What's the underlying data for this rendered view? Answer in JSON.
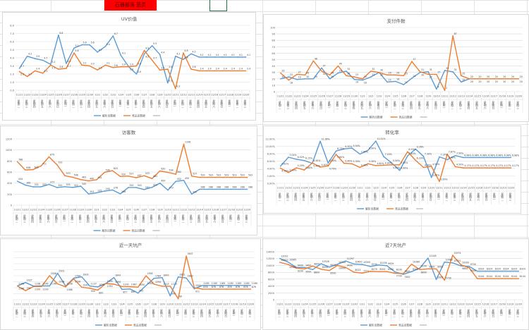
{
  "banner": {
    "text": "石器部落 恶灵",
    "color": "#ff0000"
  },
  "legend": {
    "series_a": "解析出数据",
    "series_b": "竞品出数据"
  },
  "colors": {
    "series_a": "#5b9bd5",
    "series_b": "#ed7d31",
    "grid": "#d9d9d9"
  },
  "chart_data": [
    {
      "type": "line",
      "title": "UV价值",
      "ylim": [
        0,
        8
      ],
      "ystep": 1,
      "yformat": "0.0",
      "grid": true,
      "legend": "bottom",
      "categories": [
        "11/21",
        "11/22",
        "11/23",
        "11/24",
        "11/25",
        "11/26",
        "11/27",
        "11/28",
        "11/29",
        "11/30",
        "12/1",
        "12/2",
        "12/3",
        "12/4",
        "12/5",
        "12/6",
        "12/7",
        "12/8",
        "12/9",
        "12/10",
        "12/11",
        "12/12",
        "12/13",
        "12/14",
        "12/15",
        "12/16",
        "12/17",
        "12/18",
        "12/19",
        "12/20"
      ],
      "weekdays": [
        "星期二",
        "星期三",
        "星期四",
        "星期五",
        "星期六",
        "星期日",
        "星期一",
        "星期二",
        "星期三",
        "星期四",
        "星期五",
        "星期六",
        "星期日",
        "星期一",
        "星期二",
        "星期三",
        "星期四",
        "星期五",
        "星期六",
        "星期日",
        "星期一",
        "星期二",
        "星期三",
        "星期四",
        "星期五",
        "星期六",
        "星期日",
        "星期一",
        "星期二",
        "星期三"
      ],
      "series": [
        {
          "name": "解析出数据",
          "values": [
            2.7,
            4.2,
            3.9,
            3.7,
            3.2,
            6.8,
            3.3,
            5.2,
            5.6,
            5.6,
            4.7,
            5.4,
            6.7,
            4.3,
            2.9,
            2.0,
            4.5,
            5.5,
            4.4,
            0.9,
            4.2,
            3.8,
            4.5,
            4.1,
            4.1,
            4.1,
            4.1,
            4.1,
            4.1,
            4.1
          ]
        },
        {
          "name": "竞品出数据",
          "values": [
            2.3,
            1.7,
            2.4,
            2.1,
            3.1,
            2.6,
            2.7,
            4.6,
            3.1,
            3.0,
            2.5,
            3.1,
            2.8,
            2.9,
            2.9,
            3.0,
            4.9,
            3.7,
            2.5,
            2.6,
            0.2,
            4.6,
            2.6,
            2.4,
            2.4,
            2.4,
            2.4,
            2.4,
            2.4,
            2.4
          ]
        }
      ]
    },
    {
      "type": "line",
      "title": "支付件数",
      "ylim": [
        0,
        100
      ],
      "ystep": 10,
      "yformat": "0",
      "grid": true,
      "legend": "bottom",
      "categories": [
        "11/21",
        "11/22",
        "11/23",
        "11/24",
        "11/25",
        "11/26",
        "11/27",
        "11/28",
        "11/29",
        "11/30",
        "12/1",
        "12/2",
        "12/3",
        "12/4",
        "12/5",
        "12/6",
        "12/7",
        "12/8",
        "12/9",
        "12/10",
        "12/11",
        "12/12",
        "12/13",
        "12/14",
        "12/15",
        "12/16",
        "12/17",
        "12/18",
        "12/19",
        "12/20"
      ],
      "weekdays": [
        "星期二",
        "星期三",
        "星期四",
        "星期五",
        "星期六",
        "星期日",
        "星期一",
        "星期二",
        "星期三",
        "星期四",
        "星期五",
        "星期六",
        "星期日",
        "星期一",
        "星期二",
        "星期三",
        "星期四",
        "星期五",
        "星期六",
        "星期日",
        "星期一",
        "星期二",
        "星期三",
        "星期四",
        "星期五",
        "星期六",
        "星期日",
        "星期一",
        "星期二",
        "星期三"
      ],
      "series": [
        {
          "name": "解析出数据",
          "values": [
            20,
            23,
            19,
            20,
            20,
            37,
            20,
            29,
            32,
            19,
            18,
            23,
            30,
            15,
            16,
            11,
            21,
            30,
            31,
            4,
            33,
            31,
            15,
            20,
            20,
            20,
            20,
            20,
            20,
            20
          ]
        },
        {
          "name": "竞品出数据",
          "values": [
            29,
            18,
            27,
            26,
            48,
            32,
            26,
            40,
            25,
            23,
            20,
            32,
            30,
            26,
            26,
            25,
            47,
            31,
            27,
            27,
            2,
            87,
            25,
            20,
            20,
            20,
            20,
            20,
            20,
            20
          ]
        }
      ]
    },
    {
      "type": "line",
      "title": "访客数",
      "ylim": [
        0,
        1200
      ],
      "ystep": 200,
      "yformat": "0",
      "grid": true,
      "legend": "bottom",
      "categories": [
        "11/21",
        "11/22",
        "11/23",
        "11/24",
        "11/25",
        "11/26",
        "11/27",
        "11/28",
        "11/29",
        "11/30",
        "12/1",
        "12/2",
        "12/3",
        "12/4",
        "12/5",
        "12/6",
        "12/7",
        "12/8",
        "12/9",
        "12/10",
        "12/11",
        "12/12",
        "12/13",
        "12/14",
        "12/15",
        "12/16",
        "12/17",
        "12/18",
        "12/19",
        "12/20"
      ],
      "weekdays": [
        "星期二",
        "星期三",
        "星期四",
        "星期五",
        "星期六",
        "星期日",
        "星期一",
        "星期二",
        "星期三",
        "星期四",
        "星期五",
        "星期六",
        "星期日",
        "星期一",
        "星期二",
        "星期三",
        "星期四",
        "星期五",
        "星期六",
        "星期日",
        "星期一",
        "星期二",
        "星期三",
        "星期四",
        "星期五",
        "星期六",
        "星期日",
        "星期一",
        "星期二",
        "星期三"
      ],
      "series": [
        {
          "name": "解析出数据",
          "values": [
            434,
            365,
            332,
            333,
            377,
            320,
            335,
            322,
            345,
            203,
            225,
            255,
            276,
            206,
            320,
            320,
            283,
            324,
            400,
            273,
            432,
            450,
            200,
            288,
            288,
            288,
            288,
            288,
            288,
            288
          ]
        },
        {
          "name": "竞品出数据",
          "values": [
            788,
            638,
            645,
            711,
            875,
            733,
            533,
            506,
            463,
            440,
            461,
            595,
            625,
            520,
            527,
            497,
            533,
            482,
            620,
            594,
            560,
            1106,
            527,
            503,
            503,
            503,
            503,
            503,
            503,
            503
          ]
        }
      ]
    },
    {
      "type": "line",
      "title": "转化率",
      "ylim": [
        0,
        12
      ],
      "ystep": 2,
      "yformat": "pct",
      "grid": true,
      "legend": "bottom",
      "categories": [
        "11/21",
        "11/22",
        "11/23",
        "11/24",
        "11/25",
        "11/26",
        "11/27",
        "11/28",
        "11/29",
        "11/30",
        "12/1",
        "12/2",
        "12/3",
        "12/4",
        "12/5",
        "12/6",
        "12/7",
        "12/8",
        "12/9",
        "12/10",
        "12/11",
        "12/12",
        "12/13",
        "12/14",
        "12/15",
        "12/16",
        "12/17",
        "12/18",
        "12/19",
        "12/20"
      ],
      "weekdays": [
        "星期二",
        "星期三",
        "星期四",
        "星期五",
        "星期六",
        "星期日",
        "星期一",
        "星期二",
        "星期三",
        "星期四",
        "星期五",
        "星期六",
        "星期日",
        "星期一",
        "星期二",
        "星期三",
        "星期四",
        "星期五",
        "星期六",
        "星期日",
        "星期一",
        "星期二",
        "星期三",
        "星期四",
        "星期五",
        "星期六",
        "星期日",
        "星期一",
        "星期二",
        "星期三"
      ],
      "series": [
        {
          "name": "解析出数据",
          "values": [
            4.62,
            7.04,
            6.52,
            6.15,
            5.4,
            11.38,
            5.5,
            8.73,
            9.3,
            9.5,
            7.9,
            8.9,
            11.41,
            7.2,
            5.5,
            3.5,
            7.4,
            9.26,
            7.3,
            1.6,
            7.14,
            6.4,
            7.5,
            6.98,
            6.98,
            6.98,
            6.98,
            6.98,
            6.98,
            6.98
          ]
        },
        {
          "name": "竞品出数据",
          "values": [
            4.1,
            2.93,
            4.2,
            3.6,
            5.5,
            4.4,
            4.7,
            7.8,
            5.4,
            5.3,
            4.3,
            5.3,
            4.8,
            4.9,
            5.0,
            5.0,
            8.55,
            6.2,
            4.3,
            4.55,
            0.5,
            7.87,
            4.5,
            4.17,
            4.17,
            4.17,
            4.17,
            4.17,
            4.17,
            4.17
          ]
        }
      ]
    },
    {
      "type": "line",
      "title": "近一天坑产",
      "ylim": [
        0,
        4000
      ],
      "ystep": 500,
      "yformat": "none",
      "grid": true,
      "legend": "bottom",
      "categories": [
        "11/21",
        "11/22",
        "11/23",
        "11/24",
        "11/25",
        "11/26",
        "11/27",
        "11/28",
        "11/29",
        "11/30",
        "12/1",
        "12/2",
        "12/3",
        "12/4",
        "12/5",
        "12/6",
        "12/7",
        "12/8",
        "12/9",
        "12/10",
        "12/11",
        "12/12",
        "12/13",
        "12/14",
        "12/15",
        "12/16",
        "12/17",
        "12/18",
        "12/19",
        "12/20"
      ],
      "weekdays": [
        "星期二",
        "星期三",
        "星期四",
        "星期五",
        "星期六",
        "星期日",
        "星期一",
        "星期二",
        "星期三",
        "星期四",
        "星期五",
        "星期六",
        "星期日",
        "星期一",
        "星期二",
        "星期三",
        "星期四",
        "星期五",
        "星期六",
        "星期日",
        "星期一",
        "星期二",
        "星期三",
        "星期四",
        "星期五",
        "星期六",
        "星期日",
        "星期一",
        "星期二",
        "星期三"
      ],
      "series": [
        {
          "name": "解析出数据",
          "values": [
            1146,
            1427,
            1138,
            1146,
            1146,
            2203,
            1138,
            1794,
            1903,
            1137,
            1070,
            1355,
            1843,
            857,
            897,
            555,
            1183,
            1784,
            1843,
            320,
            1902,
            1803,
            911,
            1189,
            1189,
            1189,
            1189,
            1189,
            1189,
            1189
          ]
        },
        {
          "name": "竞品出数据",
          "values": [
            1146,
            752,
            1100,
            1100,
            2006,
            1318,
            1068,
            1738,
            1041,
            950,
            800,
            1350,
            1294,
            1100,
            1087,
            1050,
            1995,
            1294,
            1123,
            1123,
            80,
            3637,
            1000,
            876,
            876,
            876,
            876,
            876,
            876,
            876
          ]
        }
      ]
    },
    {
      "type": "line",
      "title": "近7天坑产",
      "ylim": [
        0,
        14000
      ],
      "ystep": 2000,
      "yformat": "0",
      "grid": true,
      "legend": "bottom",
      "categories": [
        "11/21",
        "11/22",
        "11/23",
        "11/24",
        "11/25",
        "11/26",
        "11/27",
        "11/28",
        "11/29",
        "11/30",
        "12/1",
        "12/2",
        "12/3",
        "12/4",
        "12/5",
        "12/6",
        "12/7",
        "12/8",
        "12/9",
        "12/10",
        "12/11",
        "12/12",
        "12/13",
        "12/14",
        "12/15",
        "12/16",
        "12/17",
        "12/18",
        "12/19",
        "12/20"
      ],
      "weekdays": [
        "星期二",
        "星期三",
        "星期四",
        "星期五",
        "星期六",
        "星期日",
        "星期一",
        "星期二",
        "星期三",
        "星期四",
        "星期五",
        "星期六",
        "星期日",
        "星期一",
        "星期二",
        "星期三",
        "星期四",
        "星期五",
        "星期六",
        "星期日",
        "星期一",
        "星期二",
        "星期三",
        "星期四",
        "星期五",
        "星期六",
        "星期日",
        "星期一",
        "星期二",
        "星期三"
      ],
      "series": [
        {
          "name": "解析出数据",
          "values": [
            12032,
            10965,
            9400,
            9400,
            8800,
            10526,
            9514,
            10342,
            11297,
            10400,
            10300,
            9700,
            10136,
            9929,
            8100,
            7400,
            8200,
            9200,
            12148,
            5900,
            10980,
            10752,
            9864,
            9700,
            8324,
            8324,
            8324,
            8324,
            8324,
            8324
          ]
        },
        {
          "name": "竞品出数据",
          "values": [
            10900,
            10300,
            9200,
            9000,
            9800,
            8900,
            8500,
            10000,
            9400,
            8023,
            7771,
            8279,
            8200,
            8200,
            7700,
            7600,
            10380,
            8800,
            9000,
            9000,
            5700,
            12974,
            10200,
            9300,
            6144,
            6144,
            6144,
            6144,
            6144,
            6144
          ]
        }
      ]
    }
  ]
}
